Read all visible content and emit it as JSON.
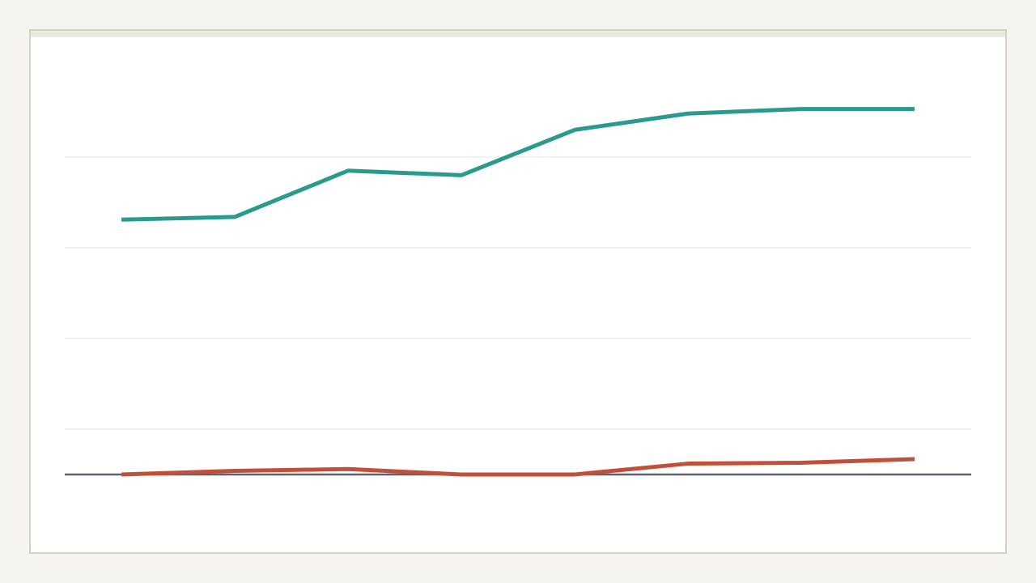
{
  "chart_data": {
    "type": "line",
    "categories": [
      null,
      null,
      null,
      null,
      null,
      null,
      null,
      null
    ],
    "series": [
      {
        "color": "#2a9a8e",
        "values": [
          28.1,
          28.4,
          33.5,
          33.0,
          38.0,
          39.8,
          40.3,
          40.3
        ]
      },
      {
        "color": "#c0503a",
        "values": [
          0,
          0.4,
          0.6,
          0,
          0,
          1.2,
          1.3,
          1.7
        ]
      }
    ],
    "ylim": [
      -5,
      45
    ],
    "yticks": [
      5,
      15,
      25,
      35
    ],
    "grid": true
  }
}
